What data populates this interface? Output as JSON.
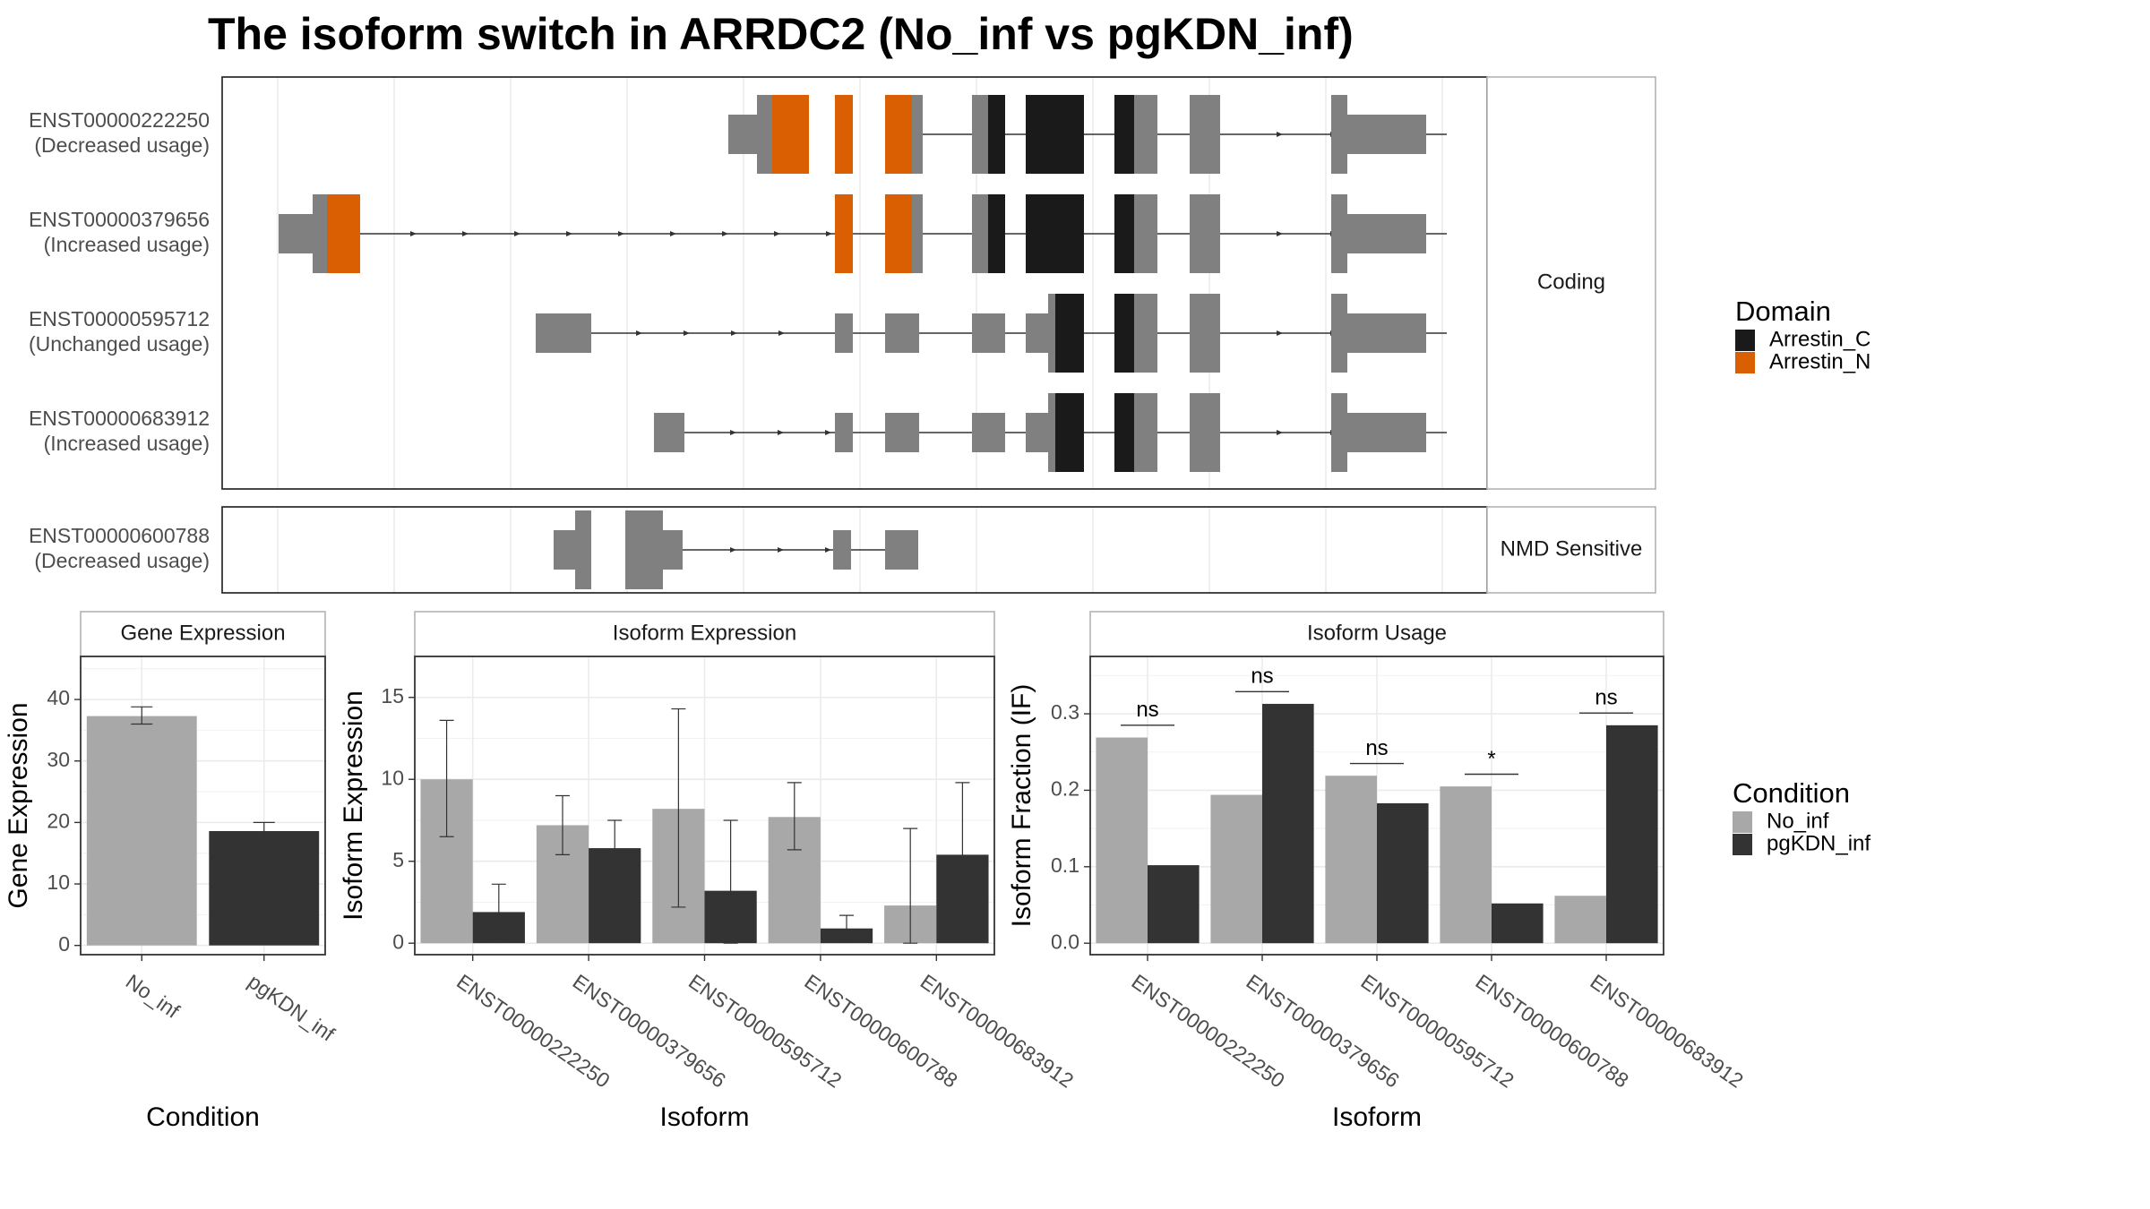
{
  "title": "The isoform switch in ARRDC2 (No_inf vs pgKDN_inf)",
  "colors": {
    "exon": "#808080",
    "arrestin_c": "#1a1a1a",
    "arrestin_n": "#d95f02",
    "no_inf": "#a8a8a8",
    "pgkdn_inf": "#333333",
    "grid": "#ebebeb",
    "panel_border": "#333333",
    "strip_border": "#b3b3b3"
  },
  "transcripts": {
    "coding_strip": "Coding",
    "nmd_strip": "NMD Sensitive",
    "coding": [
      {
        "id": "ENST00000222250",
        "usage": "(Decreased usage)"
      },
      {
        "id": "ENST00000379656",
        "usage": "(Increased usage)"
      },
      {
        "id": "ENST00000595712",
        "usage": "(Unchanged usage)"
      },
      {
        "id": "ENST00000683912",
        "usage": "(Increased usage)"
      }
    ],
    "nmd": [
      {
        "id": "ENST00000600788",
        "usage": "(Decreased usage)"
      }
    ]
  },
  "legend_domain": {
    "title": "Domain",
    "items": [
      {
        "label": "Arrestin_C",
        "color": "#1a1a1a"
      },
      {
        "label": "Arrestin_N",
        "color": "#d95f02"
      }
    ]
  },
  "legend_condition": {
    "title": "Condition",
    "items": [
      {
        "label": "No_inf",
        "color": "#a8a8a8"
      },
      {
        "label": "pgKDN_inf",
        "color": "#333333"
      }
    ]
  },
  "chart_data": [
    {
      "type": "bar",
      "strip": "Gene Expression",
      "xlabel": "Condition",
      "ylabel": "Gene Expression",
      "categories": [
        "No_inf",
        "pgKDN_inf"
      ],
      "values": [
        37.3,
        18.6
      ],
      "error_low": [
        36.0,
        17.3
      ],
      "error_high": [
        38.8,
        20.0
      ],
      "yticks": [
        0,
        10,
        20,
        30,
        40
      ],
      "ylim": [
        -1.5,
        47
      ]
    },
    {
      "type": "bar",
      "strip": "Isoform Expression",
      "xlabel": "Isoform",
      "ylabel": "Isoform Expression",
      "categories": [
        "ENST00000222250",
        "ENST00000379656",
        "ENST00000595712",
        "ENST00000600788",
        "ENST00000683912"
      ],
      "series": [
        {
          "name": "No_inf",
          "values": [
            10.0,
            7.2,
            8.2,
            7.7,
            2.3
          ],
          "error_low": [
            6.5,
            5.4,
            2.2,
            5.7,
            0.0
          ],
          "error_high": [
            13.6,
            9.0,
            14.3,
            9.8,
            7.0
          ]
        },
        {
          "name": "pgKDN_inf",
          "values": [
            1.9,
            5.8,
            3.2,
            0.9,
            5.4
          ],
          "error_low": [
            0.3,
            4.1,
            0.0,
            0.3,
            1.2
          ],
          "error_high": [
            3.6,
            7.5,
            7.5,
            1.7,
            9.8
          ]
        }
      ],
      "yticks": [
        0,
        5,
        10,
        15
      ],
      "ylim": [
        -0.7,
        17.5
      ]
    },
    {
      "type": "bar",
      "strip": "Isoform Usage",
      "xlabel": "Isoform",
      "ylabel": "Isoform Fraction (IF)",
      "categories": [
        "ENST00000222250",
        "ENST00000379656",
        "ENST00000595712",
        "ENST00000600788",
        "ENST00000683912"
      ],
      "series": [
        {
          "name": "No_inf",
          "values": [
            0.269,
            0.194,
            0.219,
            0.205,
            0.062
          ]
        },
        {
          "name": "pgKDN_inf",
          "values": [
            0.102,
            0.313,
            0.183,
            0.052,
            0.285
          ]
        }
      ],
      "significance": [
        "ns",
        "ns",
        "ns",
        "*",
        "ns"
      ],
      "significance_y": [
        0.285,
        0.329,
        0.235,
        0.221,
        0.301
      ],
      "yticks": [
        0.0,
        0.1,
        0.2,
        0.3
      ],
      "ytick_labels": [
        "0.0",
        "0.1",
        "0.2",
        "0.3"
      ],
      "ylim": [
        -0.015,
        0.375
      ]
    }
  ]
}
